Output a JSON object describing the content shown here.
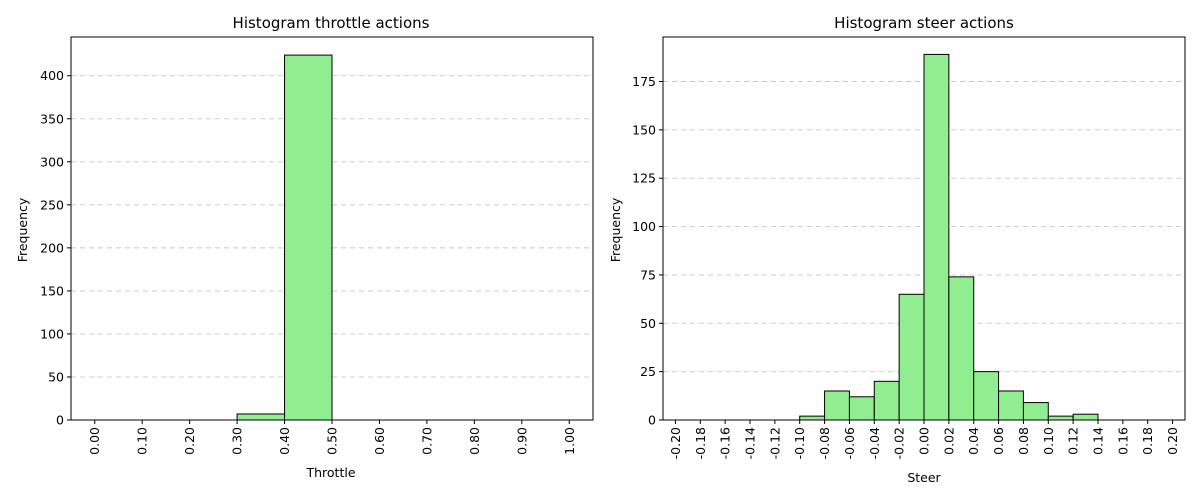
{
  "chart_data": [
    {
      "type": "bar",
      "title": "Histogram throttle actions",
      "xlabel": "Throttle",
      "ylabel": "Frequency",
      "xlim": [
        -0.05,
        1.05
      ],
      "ylim": [
        0,
        445
      ],
      "bar_color": "#90ee90",
      "edge_color": "#000000",
      "grid": "y-dashed",
      "bin_edges": [
        0.0,
        0.1,
        0.2,
        0.3,
        0.4,
        0.5,
        0.6,
        0.7,
        0.8,
        0.9,
        1.0
      ],
      "values": [
        0,
        0,
        0,
        7,
        424,
        0,
        0,
        0,
        0,
        0
      ],
      "x_ticks": [
        0.0,
        0.1,
        0.2,
        0.3,
        0.4,
        0.5,
        0.6,
        0.7,
        0.8,
        0.9,
        1.0
      ],
      "x_tick_labels": [
        "0.00",
        "0.10",
        "0.20",
        "0.30",
        "0.40",
        "0.50",
        "0.60",
        "0.70",
        "0.80",
        "0.90",
        "1.00"
      ],
      "y_ticks": [
        0,
        50,
        100,
        150,
        200,
        250,
        300,
        350,
        400
      ],
      "y_tick_labels": [
        "0",
        "50",
        "100",
        "150",
        "200",
        "250",
        "300",
        "350",
        "400"
      ]
    },
    {
      "type": "bar",
      "title": "Histogram steer actions",
      "xlabel": "Steer",
      "ylabel": "Frequency",
      "xlim": [
        -0.21,
        0.21
      ],
      "ylim": [
        0,
        198
      ],
      "bar_color": "#90ee90",
      "edge_color": "#000000",
      "grid": "y-dashed",
      "bin_edges": [
        -0.2,
        -0.18,
        -0.16,
        -0.14,
        -0.12,
        -0.1,
        -0.08,
        -0.06,
        -0.04,
        -0.02,
        0.0,
        0.02,
        0.04,
        0.06,
        0.08,
        0.1,
        0.12,
        0.14,
        0.16,
        0.18,
        0.2
      ],
      "values": [
        0,
        0,
        0,
        0,
        0,
        2,
        15,
        12,
        20,
        65,
        189,
        74,
        25,
        15,
        9,
        2,
        3,
        0,
        0,
        0
      ],
      "x_ticks": [
        -0.2,
        -0.18,
        -0.16,
        -0.14,
        -0.12,
        -0.1,
        -0.08,
        -0.06,
        -0.04,
        -0.02,
        0.0,
        0.02,
        0.04,
        0.06,
        0.08,
        0.1,
        0.12,
        0.14,
        0.16,
        0.18,
        0.2
      ],
      "x_tick_labels": [
        "-0.20",
        "-0.18",
        "-0.16",
        "-0.14",
        "-0.12",
        "-0.10",
        "-0.08",
        "-0.06",
        "-0.04",
        "-0.02",
        "0.00",
        "0.02",
        "0.04",
        "0.06",
        "0.08",
        "0.10",
        "0.12",
        "0.14",
        "0.16",
        "0.18",
        "0.20"
      ],
      "y_ticks": [
        0,
        25,
        50,
        75,
        100,
        125,
        150,
        175
      ],
      "y_tick_labels": [
        "0",
        "25",
        "50",
        "75",
        "100",
        "125",
        "150",
        "175"
      ]
    }
  ]
}
